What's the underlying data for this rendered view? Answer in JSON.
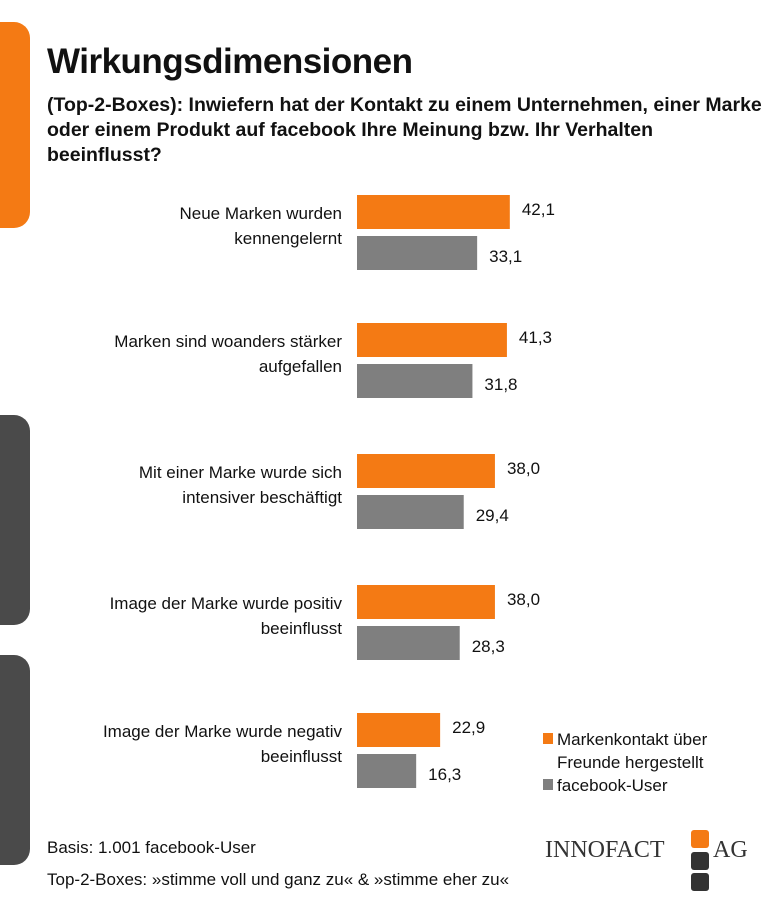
{
  "title": "Wirkungsdimensionen",
  "subtitle": " (Top-2-Boxes): Inwiefern hat der Kontakt zu einem Unternehmen, einer Marke oder einem Produkt auf facebook Ihre Meinung bzw. Ihr Verhalten beeinflusst?",
  "colors": {
    "orange": "#F47A14",
    "gray": "#7F7F7F",
    "dark": "#3A3A3A"
  },
  "chart_data": {
    "type": "bar",
    "orientation": "horizontal",
    "categories": [
      [
        "Neue Marken wurden",
        "kennengelernt"
      ],
      [
        "Marken sind woanders stärker",
        "aufgefallen"
      ],
      [
        "Mit einer Marke wurde sich",
        "intensiver beschäftigt"
      ],
      [
        "Image der Marke wurde positiv",
        "beeinflusst"
      ],
      [
        "Image der Marke wurde negativ",
        "beeinflusst"
      ]
    ],
    "series": [
      {
        "name": "Markenkontakt über Freunde hergestellt",
        "legend_lines": [
          "Markenkontakt über",
          "Freunde hergestellt"
        ],
        "color": "#F47A14",
        "values": [
          42.1,
          41.3,
          38.0,
          38.0,
          22.9
        ],
        "labels": [
          "42,1",
          "41,3",
          "38,0",
          "38,0",
          "22,9"
        ]
      },
      {
        "name": "facebook-User",
        "legend_lines": [
          "facebook-User"
        ],
        "color": "#7F7F7F",
        "values": [
          33.1,
          31.8,
          29.4,
          28.3,
          16.3
        ],
        "labels": [
          "33,1",
          "31,8",
          "29,4",
          "28,3",
          "16,3"
        ]
      }
    ],
    "legend_position": "bottom-right",
    "grid": false
  },
  "footer": {
    "basis": "Basis: 1.001 facebook-User",
    "note": "Top-2-Boxes: »stimme voll und ganz zu« & »stimme eher zu«"
  },
  "logo": {
    "text_left": "INNOFACT",
    "text_right": "AG"
  }
}
